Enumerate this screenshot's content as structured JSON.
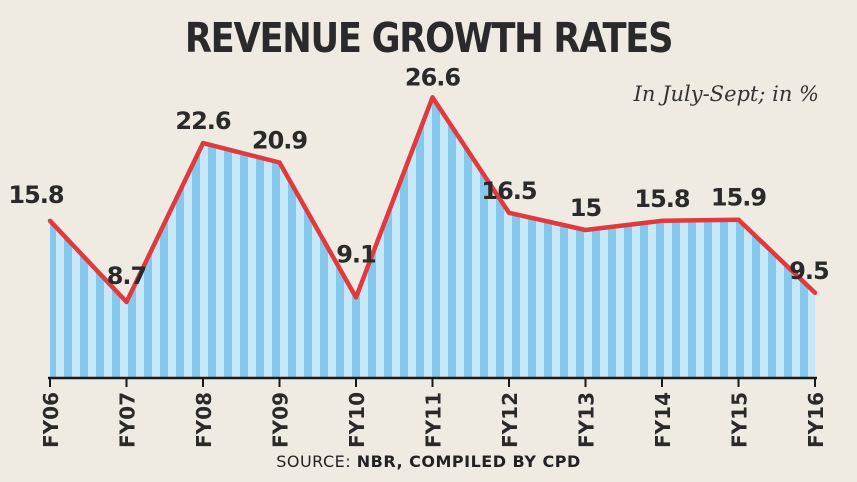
{
  "chart_data": {
    "type": "area",
    "title": "REVENUE GROWTH RATES",
    "subtitle": "In July-Sept; in %",
    "categories": [
      "FY06",
      "FY07",
      "FY08",
      "FY09",
      "FY10",
      "FY11",
      "FY12",
      "FY13",
      "FY14",
      "FY15",
      "FY16"
    ],
    "values": [
      15.8,
      8.7,
      22.6,
      20.9,
      9.1,
      26.6,
      16.5,
      15,
      15.8,
      15.9,
      9.5
    ],
    "value_labels": [
      "15.8",
      "8.7",
      "22.6",
      "20.9",
      "9.1",
      "26.6",
      "16.5",
      "15",
      "15.8",
      "15.9",
      "9.5"
    ],
    "xlabel": "",
    "ylabel": "",
    "ylim": [
      -3,
      31
    ],
    "grid": false,
    "colors": {
      "line": "#e03a3e",
      "fill_light": "#c7e8f8",
      "fill_stripe": "#86c8ec",
      "text": "#2a2a2a"
    }
  },
  "source": {
    "prefix": "SOURCE:",
    "text": "NBR, COMPILED BY CPD"
  }
}
